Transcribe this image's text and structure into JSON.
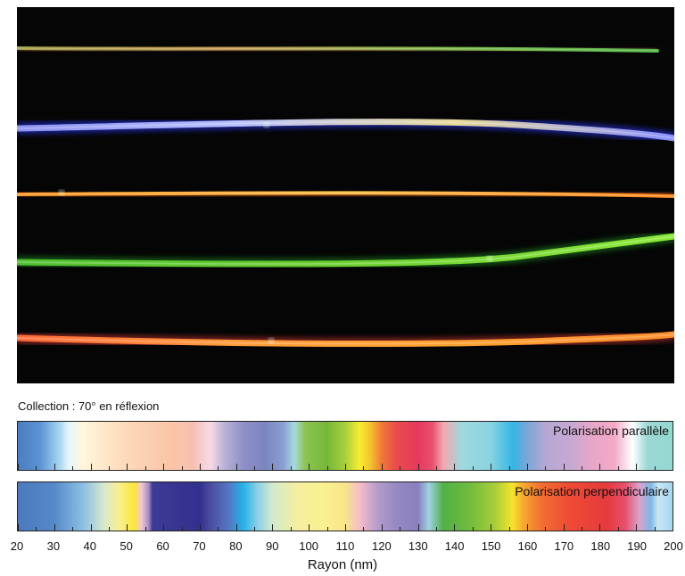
{
  "caption": "Collection : 70° en réflexion",
  "x_axis": {
    "label": "Rayon (nm)",
    "min": 20,
    "max": 200,
    "major_step": 10,
    "minor_step": 5,
    "ticks": [
      "20",
      "30",
      "40",
      "50",
      "60",
      "70",
      "80",
      "90",
      "100",
      "110",
      "120",
      "130",
      "140",
      "150",
      "160",
      "170",
      "180",
      "190",
      "200"
    ]
  },
  "bars": [
    {
      "id": "parallel",
      "title": "Polarisation parallèle",
      "stops": [
        {
          "r": 20,
          "color": "#4a7fc2"
        },
        {
          "r": 26,
          "color": "#5a92d2"
        },
        {
          "r": 31,
          "color": "#9fd0ee"
        },
        {
          "r": 34,
          "color": "#e6f6fb"
        },
        {
          "r": 38,
          "color": "#fff6dc"
        },
        {
          "r": 44,
          "color": "#ffe7c8"
        },
        {
          "r": 50,
          "color": "#fdd9b8"
        },
        {
          "r": 56,
          "color": "#fbceb0"
        },
        {
          "r": 62,
          "color": "#fcc5a6"
        },
        {
          "r": 68,
          "color": "#f6c0b2"
        },
        {
          "r": 73,
          "color": "#f7d9e6"
        },
        {
          "r": 77,
          "color": "#b8b0d6"
        },
        {
          "r": 82,
          "color": "#8f8fc8"
        },
        {
          "r": 88,
          "color": "#7b85c0"
        },
        {
          "r": 93,
          "color": "#8a9fd2"
        },
        {
          "r": 96,
          "color": "#a8d9df"
        },
        {
          "r": 99,
          "color": "#8dc453"
        },
        {
          "r": 105,
          "color": "#76b73a"
        },
        {
          "r": 110,
          "color": "#a9cf3c"
        },
        {
          "r": 114,
          "color": "#f8ed34"
        },
        {
          "r": 117,
          "color": "#f4c22e"
        },
        {
          "r": 120,
          "color": "#f07a36"
        },
        {
          "r": 124,
          "color": "#e94c4c"
        },
        {
          "r": 130,
          "color": "#e8395d"
        },
        {
          "r": 134,
          "color": "#e8506e"
        },
        {
          "r": 137,
          "color": "#f3a8b0"
        },
        {
          "r": 142,
          "color": "#9fd9de"
        },
        {
          "r": 150,
          "color": "#8ad3e0"
        },
        {
          "r": 156,
          "color": "#35b6e6"
        },
        {
          "r": 160,
          "color": "#7aa6d8"
        },
        {
          "r": 165,
          "color": "#b6a7d4"
        },
        {
          "r": 172,
          "color": "#c6a8d3"
        },
        {
          "r": 178,
          "color": "#e8a7c8"
        },
        {
          "r": 184,
          "color": "#f3a9c6"
        },
        {
          "r": 189,
          "color": "#ffffff"
        },
        {
          "r": 193,
          "color": "#9dd7d6"
        },
        {
          "r": 200,
          "color": "#93d8cf"
        }
      ]
    },
    {
      "id": "perpendicular",
      "title": "Polarisation perpendiculaire",
      "stops": [
        {
          "r": 20,
          "color": "#4b79bd"
        },
        {
          "r": 30,
          "color": "#5689c9"
        },
        {
          "r": 38,
          "color": "#8cc0e4"
        },
        {
          "r": 44,
          "color": "#dbe9cb"
        },
        {
          "r": 48,
          "color": "#f9ef8c"
        },
        {
          "r": 52,
          "color": "#fbe63a"
        },
        {
          "r": 54,
          "color": "#f3c8d5"
        },
        {
          "r": 56,
          "color": "#a38bc0"
        },
        {
          "r": 57,
          "color": "#3d3b95"
        },
        {
          "r": 70,
          "color": "#332f8e"
        },
        {
          "r": 73,
          "color": "#4a4ea0"
        },
        {
          "r": 78,
          "color": "#5477c4"
        },
        {
          "r": 82,
          "color": "#25b2e8"
        },
        {
          "r": 86,
          "color": "#8fd0e6"
        },
        {
          "r": 90,
          "color": "#d3eacd"
        },
        {
          "r": 97,
          "color": "#f6ee9d"
        },
        {
          "r": 104,
          "color": "#faf191"
        },
        {
          "r": 110,
          "color": "#f8e58a"
        },
        {
          "r": 114,
          "color": "#f6bcc8"
        },
        {
          "r": 119,
          "color": "#b49ccb"
        },
        {
          "r": 124,
          "color": "#9688c3"
        },
        {
          "r": 130,
          "color": "#8a7fbd"
        },
        {
          "r": 133,
          "color": "#9fd2e4"
        },
        {
          "r": 137,
          "color": "#51b046"
        },
        {
          "r": 144,
          "color": "#6fbb3e"
        },
        {
          "r": 151,
          "color": "#a6cd3a"
        },
        {
          "r": 156,
          "color": "#f8e32b"
        },
        {
          "r": 159,
          "color": "#f6a830"
        },
        {
          "r": 164,
          "color": "#f36e32"
        },
        {
          "r": 172,
          "color": "#ee4a35"
        },
        {
          "r": 182,
          "color": "#e43a3d"
        },
        {
          "r": 187,
          "color": "#e8506e"
        },
        {
          "r": 191,
          "color": "#d9a4cd"
        },
        {
          "r": 194,
          "color": "#7db7e6"
        },
        {
          "r": 196,
          "color": "#c9e7f4"
        },
        {
          "r": 200,
          "color": "#a6d5f0"
        }
      ]
    }
  ],
  "micrograph": {
    "background": "#050506",
    "fibers": [
      {
        "colors": [
          "#a4a14a",
          "#c39a52",
          "#7fb74a",
          "#55b84a"
        ],
        "glow": "#6a3a30"
      },
      {
        "colors": [
          "#8d93f0",
          "#b8c0ff",
          "#e7d89a",
          "#8890ff"
        ],
        "glow": "#2530d8"
      },
      {
        "colors": [
          "#ff9a2a",
          "#ffc04a",
          "#ff8b24"
        ],
        "glow": "#b54a10"
      },
      {
        "colors": [
          "#4fc02f",
          "#6cd02f",
          "#8be83a"
        ],
        "glow": "#1f7a18"
      },
      {
        "colors": [
          "#ff6a3a",
          "#ff9b3a",
          "#ffa12e",
          "#ff8d2e"
        ],
        "glow": "#b5302a"
      }
    ]
  }
}
